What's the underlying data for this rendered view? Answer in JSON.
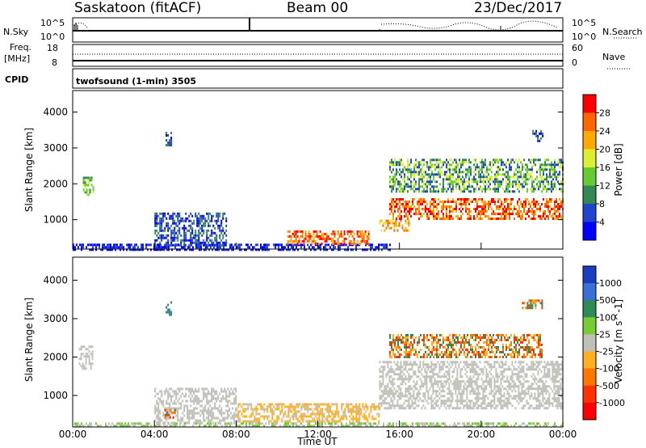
{
  "header": {
    "station": "Saskatoon (fitACF)",
    "beam": "Beam 00",
    "date": "23/Dec/2017"
  },
  "side_labels": {
    "nsky": "N.Sky",
    "nsky_ticks": [
      "10^5",
      "10^0"
    ],
    "nsearch": "N.Search",
    "nsearch_ticks": [
      "10^5",
      "10^0"
    ],
    "freq": "Freq.",
    "freq_unit": "[MHz]",
    "freq_ticks": [
      "18",
      "8"
    ],
    "nave": "Nave",
    "nave_ticks": [
      "60",
      "0"
    ],
    "cpid": "CPID",
    "cpid_value": "twofsound (1-min) 3505"
  },
  "chart_data": [
    {
      "type": "heatmap",
      "panel": "power",
      "ylabel": "Slant Range [km]",
      "yticks": [
        1000,
        2000,
        3000,
        4000
      ],
      "ylim": [
        180,
        4600
      ],
      "colorbar": {
        "label": "Power [dB]",
        "ticks": [
          "28",
          "24",
          "20",
          "16",
          "12",
          "8",
          "4"
        ],
        "colors": [
          "#ff0000",
          "#ff6600",
          "#ffaa00",
          "#ddee33",
          "#66cc33",
          "#338855",
          "#2244cc",
          "#0000ff"
        ]
      },
      "regions": [
        {
          "t0": 0.5,
          "t1": 1.0,
          "r0": 1700,
          "r1": 2200,
          "level": 3
        },
        {
          "t0": 4.55,
          "t1": 4.8,
          "r0": 3100,
          "r1": 3450,
          "level": 2
        },
        {
          "t0": 4.0,
          "t1": 7.5,
          "r0": 300,
          "r1": 1200,
          "level": 2
        },
        {
          "t0": 0.0,
          "t1": 15.5,
          "r0": 180,
          "r1": 330,
          "level": 1
        },
        {
          "t0": 10.5,
          "t1": 14.5,
          "r0": 300,
          "r1": 700,
          "level": 6
        },
        {
          "t0": 15.0,
          "t1": 16.5,
          "r0": 700,
          "r1": 1000,
          "level": 5
        },
        {
          "t0": 15.5,
          "t1": 24.0,
          "r0": 1000,
          "r1": 1600,
          "level": 7
        },
        {
          "t0": 15.5,
          "t1": 24.0,
          "r0": 1800,
          "r1": 2700,
          "level": 4
        },
        {
          "t0": 22.5,
          "t1": 23.0,
          "r0": 3200,
          "r1": 3500,
          "level": 2
        }
      ]
    },
    {
      "type": "heatmap",
      "panel": "velocity",
      "ylabel": "Slant Range [km]",
      "yticks": [
        1000,
        2000,
        3000,
        4000
      ],
      "ylim": [
        180,
        4600
      ],
      "xlabel": "Time UT",
      "xticks": [
        "00:00",
        "04:00",
        "08:00",
        "12:00",
        "16:00",
        "20:00",
        "00:00"
      ],
      "colorbar": {
        "label": "Velocity [m s^-1]",
        "ticks": [
          "1000",
          "500",
          "100",
          "25",
          "-25",
          "-100",
          "-500",
          "-1000"
        ],
        "colors": [
          "#1a3dbf",
          "#3a6fd8",
          "#2e8b57",
          "#77cc33",
          "#c0c0b8",
          "#ffb020",
          "#ff7700",
          "#ff3300",
          "#ff0000"
        ]
      },
      "regions": [
        {
          "t0": 0.3,
          "t1": 1.0,
          "r0": 1700,
          "r1": 2300,
          "level": 4
        },
        {
          "t0": 4.55,
          "t1": 4.8,
          "r0": 3100,
          "r1": 3450,
          "level": 2
        },
        {
          "t0": 4.0,
          "t1": 8.0,
          "r0": 300,
          "r1": 1200,
          "level": 4
        },
        {
          "t0": 4.5,
          "t1": 5.0,
          "r0": 450,
          "r1": 650,
          "level": 6
        },
        {
          "t0": 8.0,
          "t1": 15.0,
          "r0": 300,
          "r1": 800,
          "level": 5
        },
        {
          "t0": 15.0,
          "t1": 24.0,
          "r0": 700,
          "r1": 1900,
          "level": 4
        },
        {
          "t0": 15.5,
          "t1": 23.0,
          "r0": 2000,
          "r1": 2600,
          "level": 6
        },
        {
          "t0": 22.0,
          "t1": 23.0,
          "r0": 3300,
          "r1": 3500,
          "level": 6
        },
        {
          "t0": 0.0,
          "t1": 24.0,
          "r0": 180,
          "r1": 300,
          "level": 3
        }
      ]
    }
  ]
}
